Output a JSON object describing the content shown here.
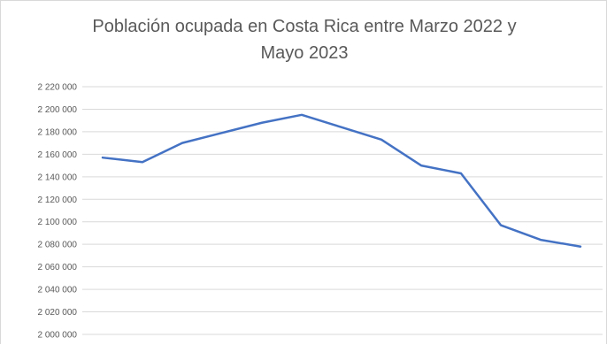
{
  "chart_data": {
    "type": "line",
    "title_lines": [
      "Población ocupada en Costa Rica entre Marzo 2022 y",
      "Mayo 2023"
    ],
    "xlabel": "",
    "ylabel": "",
    "y_ticks": [
      "2 220 000",
      "2 200 000",
      "2 180 000",
      "2 160 000",
      "2 140 000",
      "2 120 000",
      "2 100 000",
      "2 080 000",
      "2 060 000",
      "2 040 000",
      "2 020 000",
      "2 000 000"
    ],
    "ylim": [
      2000000,
      2220000
    ],
    "grid": true,
    "legend": "none",
    "series": [
      {
        "color": "#4472c4",
        "values": [
          2157000,
          2153000,
          2170000,
          2179000,
          2188000,
          2195000,
          2184000,
          2173000,
          2150000,
          2143000,
          2097000,
          2084000,
          2078000
        ]
      }
    ]
  }
}
